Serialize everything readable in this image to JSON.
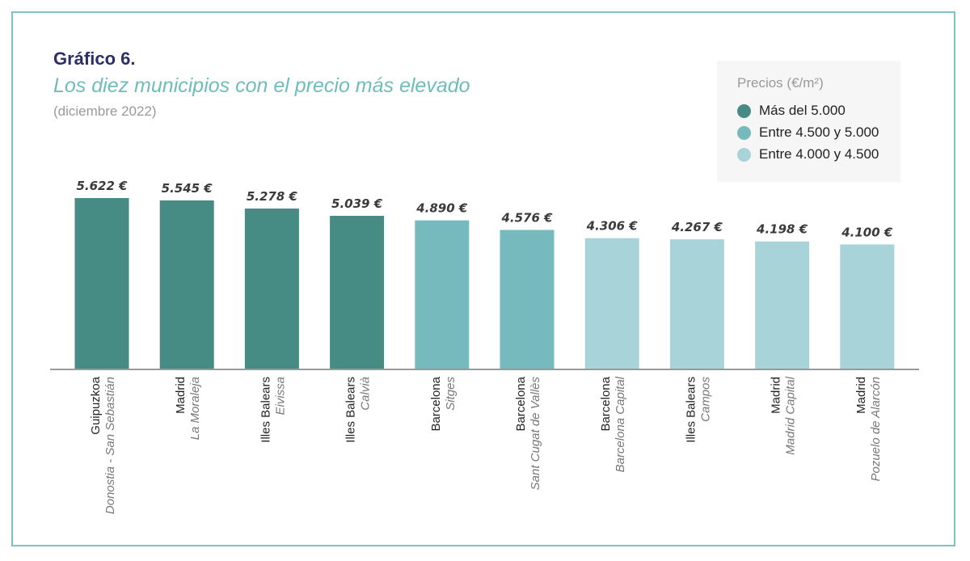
{
  "header": {
    "title": "Gráfico 6.",
    "subtitle": "Los diez municipios con el precio más elevado",
    "date": "(diciembre 2022)"
  },
  "colors": {
    "frame": "#7cc3c3",
    "high": "#468b84",
    "mid": "#77babd",
    "low": "#a8d3d8",
    "axis": "#999999"
  },
  "legend": {
    "title": "Precios (€/m²)",
    "items": [
      {
        "label": "Más del 5.000",
        "color": "#468b84"
      },
      {
        "label": "Entre 4.500 y 5.000",
        "color": "#77babd"
      },
      {
        "label": "Entre 4.000 y 4.500",
        "color": "#a8d3d8"
      }
    ]
  },
  "chart_data": {
    "type": "bar",
    "title": "Los diez municipios con el precio más elevado",
    "ylim": [
      0,
      5800
    ],
    "grid": false,
    "legend_placement": "top-right",
    "categories": [
      {
        "province": "Guipuzkoa",
        "municipality": "Donostia - San Sebastián",
        "value": 5622,
        "label": "5.622 €",
        "tier": "high"
      },
      {
        "province": "Madrid",
        "municipality": "La Moraleja",
        "value": 5545,
        "label": "5.545 €",
        "tier": "high"
      },
      {
        "province": "Illes Balears",
        "municipality": "Eivissa",
        "value": 5278,
        "label": "5.278 €",
        "tier": "high"
      },
      {
        "province": "Illes Balears",
        "municipality": "Calvià",
        "value": 5039,
        "label": "5.039 €",
        "tier": "high"
      },
      {
        "province": "Barcelona",
        "municipality": "Sitges",
        "value": 4890,
        "label": "4.890 €",
        "tier": "mid"
      },
      {
        "province": "Barcelona",
        "municipality": "Sant Cugat de Vallès",
        "value": 4576,
        "label": "4.576 €",
        "tier": "mid"
      },
      {
        "province": "Barcelona",
        "municipality": "Barcelona Capital",
        "value": 4306,
        "label": "4.306 €",
        "tier": "low"
      },
      {
        "province": "Illes Balears",
        "municipality": "Campos",
        "value": 4267,
        "label": "4.267 €",
        "tier": "low"
      },
      {
        "province": "Madrid",
        "municipality": "Madrid Capital",
        "value": 4198,
        "label": "4.198 €",
        "tier": "low"
      },
      {
        "province": "Madrid",
        "municipality": "Pozuelo de Alarcón",
        "value": 4100,
        "label": "4.100 €",
        "tier": "low"
      }
    ]
  }
}
